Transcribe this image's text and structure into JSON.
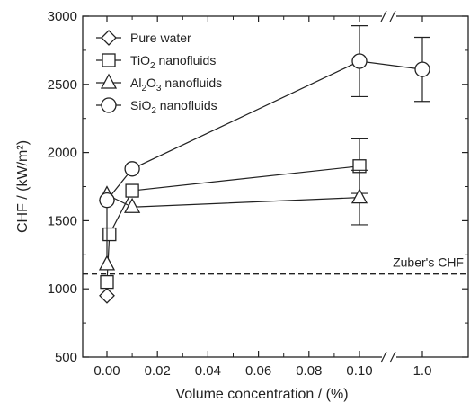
{
  "chart_data": {
    "type": "scatter",
    "xlabel": "Volume concentration / (%)",
    "ylabel": "CHF / (kW/m²)",
    "ylim": [
      500,
      3000
    ],
    "y_ticks": [
      500,
      1000,
      1500,
      2000,
      2500,
      3000
    ],
    "x_ticks": [
      "0.00",
      "0.02",
      "0.04",
      "0.06",
      "0.08",
      "0.10",
      "1.0"
    ],
    "x_axis_break": "between 0.10 and 1.0",
    "legend_position": "top-left",
    "legend": [
      {
        "label_parts": [
          "Pure water"
        ]
      },
      {
        "label_parts": [
          "TiO",
          "2",
          " nanofluids"
        ]
      },
      {
        "label_parts": [
          "Al",
          "2",
          "O",
          "3",
          " nanofluids"
        ]
      },
      {
        "label_parts": [
          "SiO",
          "2",
          " nanofluids"
        ]
      }
    ],
    "series": [
      {
        "marker": "diamond",
        "points": [
          {
            "x": 0.0,
            "y": 950
          }
        ]
      },
      {
        "marker": "square",
        "points": [
          {
            "x": 0.0,
            "y": 1050
          },
          {
            "x": 0.001,
            "y": 1400
          },
          {
            "x": 0.01,
            "y": 1720
          },
          {
            "x": 0.1,
            "y": 1900,
            "err": 200
          }
        ]
      },
      {
        "marker": "triangle",
        "points": [
          {
            "x": 0.0,
            "y": 1180
          },
          {
            "x": 0.0,
            "y": 1690
          },
          {
            "x": 0.01,
            "y": 1600
          },
          {
            "x": 0.1,
            "y": 1670,
            "err": 200
          }
        ]
      },
      {
        "marker": "circle",
        "points": [
          {
            "x": 0.0,
            "y": 1650
          },
          {
            "x": 0.01,
            "y": 1880
          },
          {
            "x": 0.1,
            "y": 2670,
            "err": 260
          },
          {
            "x": 1.0,
            "y": 2610,
            "err": 235
          }
        ]
      }
    ],
    "reference_line": {
      "label": "Zuber's CHF",
      "y": 1110,
      "style": "dashed"
    }
  }
}
